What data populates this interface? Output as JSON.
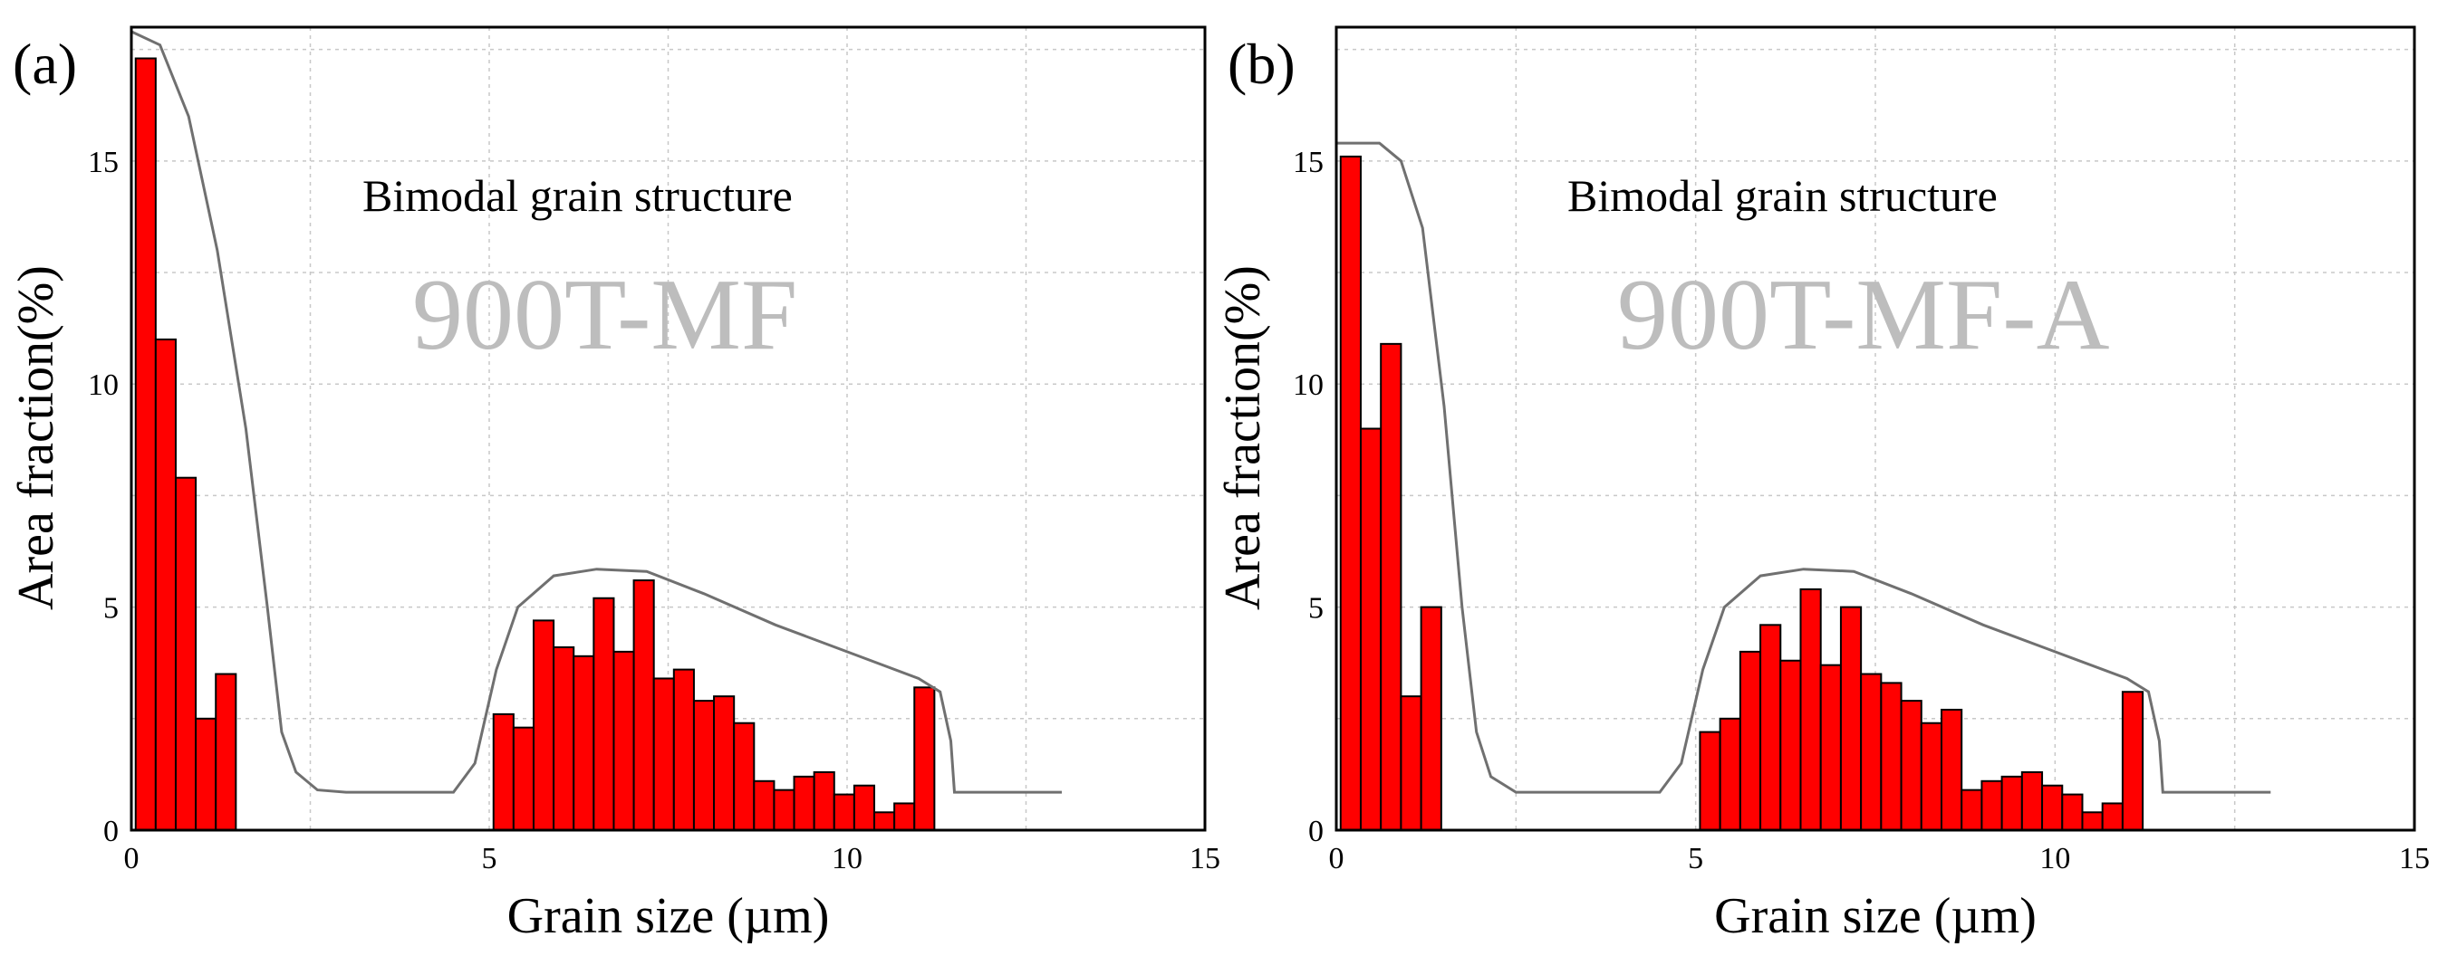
{
  "colors": {
    "bar": "#ff0000",
    "bar_edge": "#000000",
    "curve": "#707070",
    "grid": "#c8c8c8",
    "sample_text": "#bdbdbd"
  },
  "chart_data": [
    {
      "type": "bar",
      "panel_label": "(a)",
      "annotation": "Bimodal grain structure",
      "sample": "900T-MF",
      "xlabel": "Grain size (µm)",
      "ylabel": "Area fraction(%)",
      "xlim": [
        0,
        15
      ],
      "ylim": [
        0,
        18
      ],
      "xticks": [
        "0",
        "5",
        "10",
        "15"
      ],
      "yticks": [
        "0",
        "5",
        "10",
        "15"
      ],
      "bin_width": 0.28,
      "bars": [
        {
          "x": 0.2,
          "y": 17.3
        },
        {
          "x": 0.48,
          "y": 11.0
        },
        {
          "x": 0.76,
          "y": 7.9
        },
        {
          "x": 1.04,
          "y": 2.5
        },
        {
          "x": 1.32,
          "y": 3.5
        },
        {
          "x": 5.2,
          "y": 2.6
        },
        {
          "x": 5.48,
          "y": 2.3
        },
        {
          "x": 5.76,
          "y": 4.7
        },
        {
          "x": 6.04,
          "y": 4.1
        },
        {
          "x": 6.32,
          "y": 3.9
        },
        {
          "x": 6.6,
          "y": 5.2
        },
        {
          "x": 6.88,
          "y": 4.0
        },
        {
          "x": 7.16,
          "y": 5.6
        },
        {
          "x": 7.44,
          "y": 3.4
        },
        {
          "x": 7.72,
          "y": 3.6
        },
        {
          "x": 8.0,
          "y": 2.9
        },
        {
          "x": 8.28,
          "y": 3.0
        },
        {
          "x": 8.56,
          "y": 2.4
        },
        {
          "x": 8.84,
          "y": 1.1
        },
        {
          "x": 9.12,
          "y": 0.9
        },
        {
          "x": 9.4,
          "y": 1.2
        },
        {
          "x": 9.68,
          "y": 1.3
        },
        {
          "x": 9.96,
          "y": 0.8
        },
        {
          "x": 10.24,
          "y": 1.0
        },
        {
          "x": 10.52,
          "y": 0.4
        },
        {
          "x": 10.8,
          "y": 0.6
        },
        {
          "x": 11.08,
          "y": 3.2
        }
      ],
      "envelope": [
        [
          0,
          17.9
        ],
        [
          0.4,
          17.6
        ],
        [
          0.8,
          16.0
        ],
        [
          1.2,
          13.0
        ],
        [
          1.6,
          9.0
        ],
        [
          1.9,
          5.0
        ],
        [
          2.1,
          2.2
        ],
        [
          2.3,
          1.3
        ],
        [
          2.6,
          0.9
        ],
        [
          3.0,
          0.85
        ],
        [
          4.5,
          0.85
        ],
        [
          4.8,
          1.5
        ],
        [
          5.1,
          3.6
        ],
        [
          5.4,
          5.0
        ],
        [
          5.9,
          5.7
        ],
        [
          6.5,
          5.85
        ],
        [
          7.2,
          5.8
        ],
        [
          8.0,
          5.3
        ],
        [
          9.0,
          4.6
        ],
        [
          10.0,
          4.0
        ],
        [
          11.0,
          3.4
        ],
        [
          11.3,
          3.1
        ],
        [
          11.45,
          2.0
        ],
        [
          11.5,
          0.85
        ],
        [
          13.0,
          0.85
        ]
      ]
    },
    {
      "type": "bar",
      "panel_label": "(b)",
      "annotation": "Bimodal grain structure",
      "sample": "900T-MF-A",
      "xlabel": "Grain size (µm)",
      "ylabel": "Area fraction(%)",
      "xlim": [
        0,
        15
      ],
      "ylim": [
        0,
        18
      ],
      "xticks": [
        "0",
        "5",
        "10",
        "15"
      ],
      "yticks": [
        "0",
        "5",
        "10",
        "15"
      ],
      "bin_width": 0.28,
      "bars": [
        {
          "x": 0.2,
          "y": 15.1
        },
        {
          "x": 0.48,
          "y": 9.0
        },
        {
          "x": 0.76,
          "y": 10.9
        },
        {
          "x": 1.04,
          "y": 3.0
        },
        {
          "x": 1.32,
          "y": 5.0
        },
        {
          "x": 5.2,
          "y": 2.2
        },
        {
          "x": 5.48,
          "y": 2.5
        },
        {
          "x": 5.76,
          "y": 4.0
        },
        {
          "x": 6.04,
          "y": 4.6
        },
        {
          "x": 6.32,
          "y": 3.8
        },
        {
          "x": 6.6,
          "y": 5.4
        },
        {
          "x": 6.88,
          "y": 3.7
        },
        {
          "x": 7.16,
          "y": 5.0
        },
        {
          "x": 7.44,
          "y": 3.5
        },
        {
          "x": 7.72,
          "y": 3.3
        },
        {
          "x": 8.0,
          "y": 2.9
        },
        {
          "x": 8.28,
          "y": 2.4
        },
        {
          "x": 8.56,
          "y": 2.7
        },
        {
          "x": 8.84,
          "y": 0.9
        },
        {
          "x": 9.12,
          "y": 1.1
        },
        {
          "x": 9.4,
          "y": 1.2
        },
        {
          "x": 9.68,
          "y": 1.3
        },
        {
          "x": 9.96,
          "y": 1.0
        },
        {
          "x": 10.24,
          "y": 0.8
        },
        {
          "x": 10.52,
          "y": 0.4
        },
        {
          "x": 10.8,
          "y": 0.6
        },
        {
          "x": 11.08,
          "y": 3.1
        }
      ],
      "envelope": [
        [
          0,
          15.4
        ],
        [
          0.6,
          15.4
        ],
        [
          0.9,
          15.0
        ],
        [
          1.2,
          13.5
        ],
        [
          1.5,
          9.5
        ],
        [
          1.75,
          5.0
        ],
        [
          1.95,
          2.2
        ],
        [
          2.15,
          1.2
        ],
        [
          2.5,
          0.85
        ],
        [
          3.0,
          0.85
        ],
        [
          4.5,
          0.85
        ],
        [
          4.8,
          1.5
        ],
        [
          5.1,
          3.6
        ],
        [
          5.4,
          5.0
        ],
        [
          5.9,
          5.7
        ],
        [
          6.5,
          5.85
        ],
        [
          7.2,
          5.8
        ],
        [
          8.0,
          5.3
        ],
        [
          9.0,
          4.6
        ],
        [
          10.0,
          4.0
        ],
        [
          11.0,
          3.4
        ],
        [
          11.3,
          3.1
        ],
        [
          11.45,
          2.0
        ],
        [
          11.5,
          0.85
        ],
        [
          13.0,
          0.85
        ]
      ]
    }
  ]
}
